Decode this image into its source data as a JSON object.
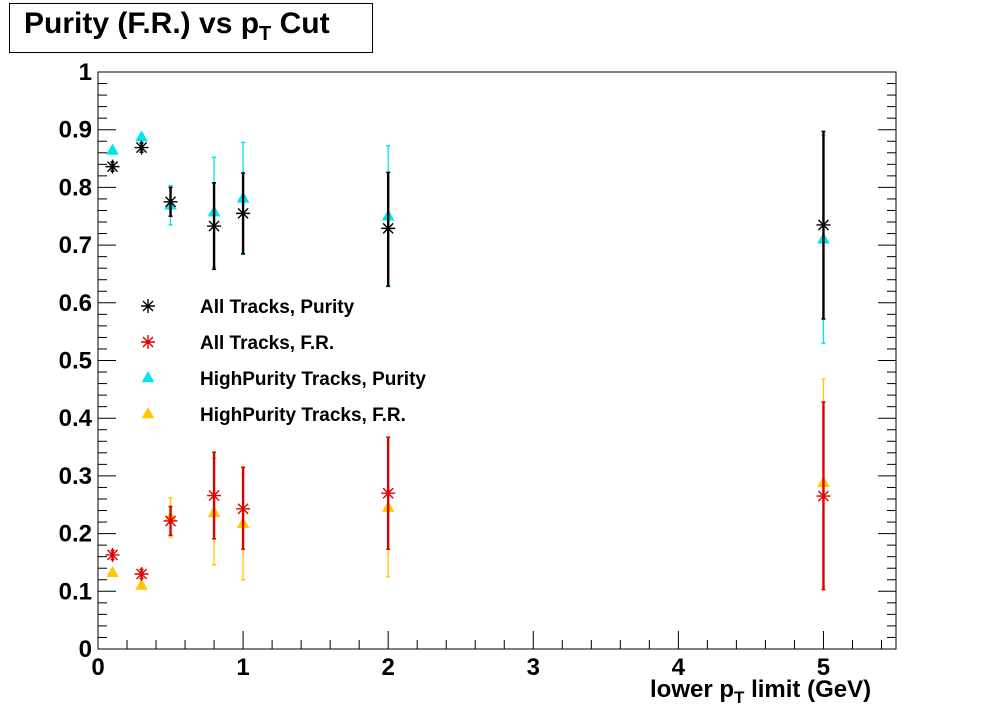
{
  "chart_data": {
    "type": "scatter",
    "title": {
      "main": "Purity (F.R.) vs p",
      "sub": "T",
      "suffix": " Cut"
    },
    "xlabel": {
      "main": "lower p",
      "sub": "T",
      "suffix": " limit (GeV)"
    },
    "ylabel": "",
    "xlim": [
      0,
      5.5
    ],
    "ylim": [
      0,
      1
    ],
    "xticks": [
      0,
      1,
      2,
      3,
      4,
      5
    ],
    "yticks": [
      0,
      0.1,
      0.2,
      0.3,
      0.4,
      0.5,
      0.6,
      0.7,
      0.8,
      0.9,
      1
    ],
    "ytick_labels": [
      "0",
      "0.1",
      "0.2",
      "0.3",
      "0.4",
      "0.5",
      "0.6",
      "0.7",
      "0.8",
      "0.9",
      "1"
    ],
    "grid": false,
    "legend_position": "center-left",
    "series": [
      {
        "name": "All Tracks, Purity",
        "marker": "star",
        "color": "#000000",
        "x": [
          0.1,
          0.3,
          0.5,
          0.8,
          1.0,
          2.0,
          5.0
        ],
        "y": [
          0.836,
          0.869,
          0.775,
          0.733,
          0.755,
          0.729,
          0.735
        ],
        "err_low": [
          0.008,
          0.008,
          0.025,
          0.075,
          0.07,
          0.1,
          0.163
        ],
        "err_high": [
          0.008,
          0.008,
          0.025,
          0.075,
          0.07,
          0.097,
          0.162
        ]
      },
      {
        "name": "All Tracks, F.R.",
        "marker": "star",
        "color": "#dd0000",
        "x": [
          0.1,
          0.3,
          0.5,
          0.8,
          1.0,
          2.0,
          5.0
        ],
        "y": [
          0.163,
          0.13,
          0.222,
          0.266,
          0.243,
          0.27,
          0.265
        ],
        "err_low": [
          0.008,
          0.008,
          0.025,
          0.075,
          0.07,
          0.097,
          0.162
        ],
        "err_high": [
          0.008,
          0.008,
          0.025,
          0.075,
          0.072,
          0.097,
          0.163
        ]
      },
      {
        "name": "HighPurity Tracks, Purity",
        "marker": "triangle",
        "color": "#00e5ee",
        "x": [
          0.1,
          0.3,
          0.5,
          0.8,
          1.0,
          2.0,
          5.0
        ],
        "y": [
          0.864,
          0.887,
          0.769,
          0.757,
          0.781,
          0.75,
          0.71
        ],
        "err_low": [
          0.006,
          0.006,
          0.034,
          0.095,
          0.097,
          0.122,
          0.18
        ],
        "err_high": [
          0.006,
          0.006,
          0.034,
          0.095,
          0.097,
          0.122,
          0.18
        ]
      },
      {
        "name": "HighPurity Tracks, F.R.",
        "marker": "triangle",
        "color": "#ffc800",
        "x": [
          0.1,
          0.3,
          0.5,
          0.8,
          1.0,
          2.0,
          5.0
        ],
        "y": [
          0.132,
          0.11,
          0.228,
          0.236,
          0.217,
          0.245,
          0.288
        ],
        "err_low": [
          0.006,
          0.006,
          0.034,
          0.09,
          0.097,
          0.12,
          0.18
        ],
        "err_high": [
          0.006,
          0.006,
          0.034,
          0.095,
          0.097,
          0.122,
          0.18
        ]
      }
    ]
  }
}
